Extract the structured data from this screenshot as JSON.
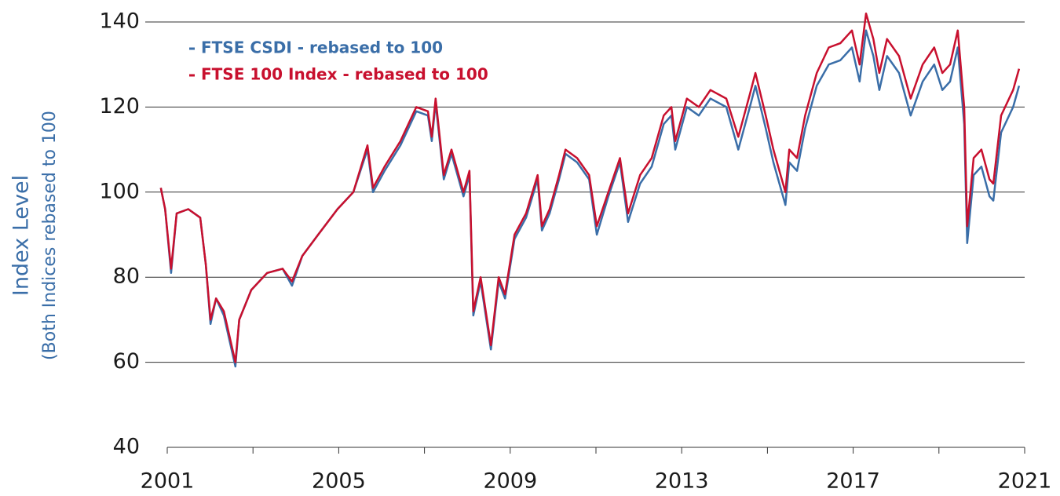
{
  "chart_data": {
    "type": "line",
    "y_axis_label": "Index Level",
    "y_axis_sublabel": "(Both Indices rebased to 100",
    "xlim": [
      2001,
      2021
    ],
    "xticks": [
      2001,
      2005,
      2009,
      2013,
      2017,
      2021
    ],
    "xminorticks": [
      2003,
      2007,
      2011,
      2015,
      2019
    ],
    "ylim": [
      40,
      140
    ],
    "yticks": [
      40,
      60,
      80,
      100,
      120,
      140
    ],
    "grid": true,
    "legend": "upper left",
    "x": [
      2000.85,
      2000.95,
      2001.09,
      2001.22,
      2001.49,
      2001.77,
      2001.9,
      2002.01,
      2002.14,
      2002.32,
      2002.5,
      2002.59,
      2002.68,
      2002.96,
      2003.33,
      2003.69,
      2003.91,
      2004.15,
      2004.52,
      2004.97,
      2005.34,
      2005.67,
      2005.8,
      2006.07,
      2006.44,
      2006.81,
      2007.08,
      2007.17,
      2007.26,
      2007.45,
      2007.63,
      2007.91,
      2008.05,
      2008.14,
      2008.31,
      2008.55,
      2008.73,
      2008.88,
      2009.1,
      2009.37,
      2009.64,
      2009.74,
      2009.92,
      2010.14,
      2010.29,
      2010.56,
      2010.84,
      2011.02,
      2011.29,
      2011.56,
      2011.75,
      2012.03,
      2012.3,
      2012.58,
      2012.76,
      2012.85,
      2013.12,
      2013.4,
      2013.67,
      2014.04,
      2014.32,
      2014.59,
      2014.72,
      2014.96,
      2015.14,
      2015.42,
      2015.51,
      2015.69,
      2015.88,
      2016.15,
      2016.43,
      2016.7,
      2016.97,
      2017.15,
      2017.3,
      2017.47,
      2017.61,
      2017.79,
      2018.07,
      2018.34,
      2018.62,
      2018.89,
      2019.08,
      2019.26,
      2019.44,
      2019.59,
      2019.66,
      2019.81,
      2019.99,
      2020.18,
      2020.27,
      2020.45,
      2020.73,
      2020.87
    ],
    "series": [
      {
        "name": "FTSE CSDI - rebased to 100",
        "color": "#3a6ea8",
        "values": [
          101,
          96,
          81,
          95,
          96,
          94,
          83,
          69,
          75,
          71,
          63,
          59,
          70,
          77,
          81,
          82,
          78,
          85,
          90,
          96,
          100,
          110,
          100,
          105,
          111,
          119,
          118,
          112,
          121,
          103,
          109,
          99,
          104,
          71,
          79,
          63,
          79,
          75,
          89,
          94,
          103,
          91,
          95,
          103,
          109,
          107,
          103,
          90,
          99,
          107,
          93,
          102,
          106,
          116,
          118,
          110,
          120,
          118,
          122,
          120,
          110,
          120,
          125,
          115,
          107,
          97,
          107,
          105,
          115,
          125,
          130,
          131,
          134,
          126,
          138,
          132,
          124,
          132,
          128,
          118,
          126,
          130,
          124,
          126,
          134,
          116,
          88,
          104,
          106,
          99,
          98,
          114,
          120,
          125
        ]
      },
      {
        "name": "FTSE 100 Index - rebased to 100",
        "color": "#c8102e",
        "values": [
          101,
          96,
          82,
          95,
          96,
          94,
          83,
          70,
          75,
          72,
          64,
          60,
          70,
          77,
          81,
          82,
          79,
          85,
          90,
          96,
          100,
          111,
          101,
          106,
          112,
          120,
          119,
          113,
          122,
          104,
          110,
          100,
          105,
          72,
          80,
          64,
          80,
          76,
          90,
          95,
          104,
          92,
          96,
          104,
          110,
          108,
          104,
          92,
          100,
          108,
          95,
          104,
          108,
          118,
          120,
          112,
          122,
          120,
          124,
          122,
          113,
          123,
          128,
          118,
          110,
          100,
          110,
          108,
          118,
          128,
          134,
          135,
          138,
          130,
          142,
          136,
          128,
          136,
          132,
          122,
          130,
          134,
          128,
          130,
          138,
          120,
          92,
          108,
          110,
          103,
          102,
          118,
          124,
          129
        ]
      }
    ]
  }
}
